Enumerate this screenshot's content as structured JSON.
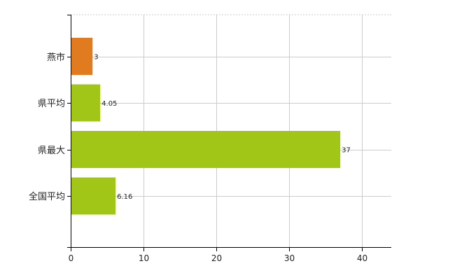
{
  "colors": {
    "highlight": "#e07b20",
    "default": "#a2c617",
    "grid": "#cccccc",
    "axis": "#000000"
  },
  "chart_data": {
    "type": "bar",
    "orientation": "horizontal",
    "categories": [
      "燕市",
      "県平均",
      "県最大",
      "全国平均"
    ],
    "values": [
      3,
      4.05,
      37,
      6.16
    ],
    "value_labels": [
      "3",
      "4.05",
      "37",
      "6.16"
    ],
    "bar_colors": [
      "#e07b20",
      "#a2c617",
      "#a2c617",
      "#a2c617"
    ],
    "xlim": [
      0,
      44
    ],
    "xticks": [
      0,
      10,
      20,
      30,
      40
    ],
    "xtick_labels": [
      "0",
      "10",
      "20",
      "30",
      "40"
    ],
    "grid": true,
    "legend": "none",
    "title": "",
    "xlabel": "",
    "ylabel": ""
  }
}
